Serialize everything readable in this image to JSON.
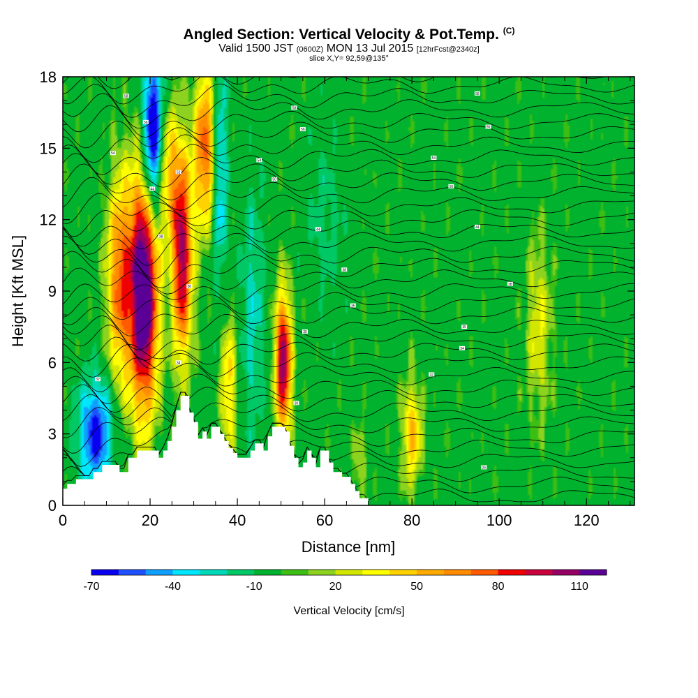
{
  "chart_data": {
    "type": "heatmap",
    "title": "Angled Section: Vertical Velocity & Pot.Temp.",
    "title_mark": "(C)",
    "subtitle_pre": "Valid 1500 JST",
    "subtitle_utc": "(0600Z)",
    "subtitle_date": "MON 13 Jul 2015",
    "subtitle_fcst": "[12hrFcst@2340z]",
    "slice_label": "slice X,Y= 92,59@135°",
    "xlabel": "Distance [nm]",
    "ylabel": "Height [Kft MSL]",
    "xlim": [
      0,
      131
    ],
    "ylim": [
      0,
      18
    ],
    "x_ticks": [
      0,
      20,
      40,
      60,
      80,
      100,
      120
    ],
    "y_ticks": [
      0,
      3,
      6,
      9,
      12,
      15,
      18
    ],
    "colorbar": {
      "label": "Vertical Velocity [cm/s]",
      "min": -70,
      "step": 10,
      "tick_values": [
        -70,
        -40,
        -10,
        20,
        50,
        80,
        110
      ],
      "tick_labels": [
        "-70",
        "-40",
        "-10",
        "20",
        "50",
        "80",
        "110"
      ],
      "colors": [
        "#0a00f0",
        "#1e50ff",
        "#0fa0ff",
        "#00e6ff",
        "#00d9b8",
        "#00c865",
        "#00b22d",
        "#3cbe14",
        "#8cd21e",
        "#d2e600",
        "#ffff00",
        "#ffd200",
        "#ffaa00",
        "#ff8c00",
        "#ff5a00",
        "#f00000",
        "#c8003c",
        "#960064",
        "#5a0096"
      ],
      "background_color": "#00b22d"
    },
    "velocity_features": [
      {
        "x": 20.5,
        "z": 15.5,
        "sx": 1.6,
        "sz": 2.5,
        "w": -90
      },
      {
        "x": 7.5,
        "z": 3.0,
        "sx": 2.8,
        "sz": 1.6,
        "w": -65
      },
      {
        "x": 25.0,
        "z": 11.5,
        "sx": 1.2,
        "sz": 3.5,
        "w": -30
      },
      {
        "x": 36.0,
        "z": 14.0,
        "sx": 1.2,
        "sz": 3.5,
        "w": -40
      },
      {
        "x": 43.5,
        "z": 8.0,
        "sx": 2.0,
        "sz": 4.0,
        "w": -25
      },
      {
        "x": 18.5,
        "z": 9.0,
        "sx": 2.3,
        "sz": 3.5,
        "w": 140
      },
      {
        "x": 13.0,
        "z": 9.5,
        "sx": 2.0,
        "sz": 3.0,
        "w": 70
      },
      {
        "x": 27.0,
        "z": 10.5,
        "sx": 1.8,
        "sz": 3.0,
        "w": 110
      },
      {
        "x": 24.5,
        "z": 14.0,
        "sx": 1.5,
        "sz": 2.0,
        "w": 55
      },
      {
        "x": 32.5,
        "z": 15.0,
        "sx": 1.7,
        "sz": 2.3,
        "w": 75
      },
      {
        "x": 50.5,
        "z": 6.0,
        "sx": 1.3,
        "sz": 2.0,
        "w": 110
      },
      {
        "x": 80.0,
        "z": 3.0,
        "sx": 1.5,
        "sz": 1.5,
        "w": 50
      },
      {
        "x": 38.0,
        "z": 5.0,
        "sx": 1.3,
        "sz": 2.0,
        "w": 45
      },
      {
        "x": 68.0,
        "z": 1.5,
        "sx": 1.0,
        "sz": 1.2,
        "w": 20
      },
      {
        "x": 109.0,
        "z": 7.5,
        "sx": 2.0,
        "sz": 2.5,
        "w": 30
      },
      {
        "x": 60.0,
        "z": 12.0,
        "sx": 3.0,
        "sz": 2.5,
        "w": -15
      }
    ],
    "terrain_x": [
      0,
      1,
      1,
      3,
      3,
      7,
      7,
      9,
      9,
      13,
      13,
      15,
      15,
      17,
      17,
      19,
      19,
      22,
      22,
      23,
      23,
      24,
      24,
      25,
      25,
      26,
      26,
      27,
      27,
      28,
      28,
      29,
      29,
      30,
      30,
      31,
      31,
      32,
      32,
      33,
      33,
      34,
      34,
      35,
      35,
      36,
      36,
      37,
      37,
      38,
      38,
      39,
      39,
      40,
      40,
      41,
      41,
      42,
      42,
      43,
      43,
      44,
      44,
      45,
      45,
      46,
      46,
      47,
      47,
      48,
      48,
      49,
      49,
      51,
      51,
      52,
      52,
      53,
      53,
      54,
      54,
      55,
      55,
      56,
      56,
      57,
      57,
      58,
      58,
      59,
      59,
      60,
      60,
      61,
      61,
      62,
      62,
      64,
      64,
      66,
      66,
      67,
      67,
      68,
      68,
      70,
      70,
      71
    ],
    "terrain_z": [
      0.7,
      0.7,
      0.9,
      0.9,
      1.1,
      1.1,
      1.4,
      1.4,
      1.7,
      1.7,
      1.4,
      1.4,
      2.0,
      2.0,
      2.3,
      2.3,
      2.3,
      2.3,
      2.0,
      2.0,
      2.3,
      2.3,
      2.7,
      2.7,
      3.3,
      3.3,
      4.0,
      4.0,
      4.6,
      4.6,
      4.6,
      4.6,
      3.9,
      3.9,
      3.5,
      3.5,
      2.8,
      2.8,
      3.1,
      3.1,
      2.8,
      2.8,
      3.3,
      3.3,
      3.3,
      3.3,
      3.0,
      3.0,
      2.7,
      2.7,
      2.4,
      2.4,
      2.2,
      2.2,
      2.0,
      2.0,
      2.0,
      2.0,
      2.0,
      2.0,
      2.3,
      2.3,
      2.6,
      2.6,
      2.6,
      2.6,
      2.3,
      2.3,
      2.9,
      2.9,
      3.3,
      3.3,
      3.3,
      3.3,
      3.1,
      3.1,
      2.5,
      2.5,
      2.0,
      2.0,
      1.6,
      1.6,
      1.8,
      1.8,
      2.3,
      2.3,
      2.0,
      2.0,
      1.6,
      1.6,
      2.3,
      2.3,
      2.3,
      2.3,
      1.8,
      1.8,
      1.4,
      1.4,
      1.2,
      1.2,
      0.9,
      0.9,
      0.6,
      0.6,
      0.3,
      0.3,
      0.0,
      0.0
    ],
    "isentrope_levels": [
      24,
      25,
      26,
      27,
      28,
      29,
      30,
      31,
      32,
      33,
      34,
      35,
      36,
      37,
      38,
      39,
      40,
      41,
      42,
      43,
      44,
      45,
      46,
      47,
      48,
      49,
      50,
      51,
      52,
      53,
      54,
      55,
      56,
      57,
      58,
      59
    ],
    "contour_labels": [
      {
        "text": "58",
        "x": 14.5,
        "z": 17.2
      },
      {
        "text": "58",
        "x": 53.0,
        "z": 16.7
      },
      {
        "text": "58",
        "x": 95.0,
        "z": 17.3
      },
      {
        "text": "56",
        "x": 19.0,
        "z": 16.1
      },
      {
        "text": "56",
        "x": 55.0,
        "z": 15.8
      },
      {
        "text": "56",
        "x": 97.5,
        "z": 15.9
      },
      {
        "text": "54",
        "x": 11.5,
        "z": 14.8
      },
      {
        "text": "54",
        "x": 45.0,
        "z": 14.5
      },
      {
        "text": "54",
        "x": 85.0,
        "z": 14.6
      },
      {
        "text": "52",
        "x": 26.5,
        "z": 14.0
      },
      {
        "text": "50",
        "x": 48.5,
        "z": 13.7
      },
      {
        "text": "50",
        "x": 89.0,
        "z": 13.4
      },
      {
        "text": "44",
        "x": 20.5,
        "z": 13.3
      },
      {
        "text": "44",
        "x": 58.5,
        "z": 11.6
      },
      {
        "text": "44",
        "x": 95.0,
        "z": 11.7
      },
      {
        "text": "38",
        "x": 22.5,
        "z": 11.3
      },
      {
        "text": "38",
        "x": 64.5,
        "z": 9.9
      },
      {
        "text": "38",
        "x": 102.5,
        "z": 9.3
      },
      {
        "text": "36",
        "x": 29.0,
        "z": 9.2
      },
      {
        "text": "36",
        "x": 66.5,
        "z": 8.4
      },
      {
        "text": "35",
        "x": 55.5,
        "z": 7.3
      },
      {
        "text": "35",
        "x": 92.0,
        "z": 7.5
      },
      {
        "text": "34",
        "x": 26.5,
        "z": 6.0
      },
      {
        "text": "34",
        "x": 91.5,
        "z": 6.6
      },
      {
        "text": "32",
        "x": 8.0,
        "z": 5.3
      },
      {
        "text": "32",
        "x": 84.5,
        "z": 5.5
      },
      {
        "text": "30",
        "x": 53.5,
        "z": 4.3
      },
      {
        "text": "26",
        "x": 96.5,
        "z": 1.6
      }
    ]
  }
}
